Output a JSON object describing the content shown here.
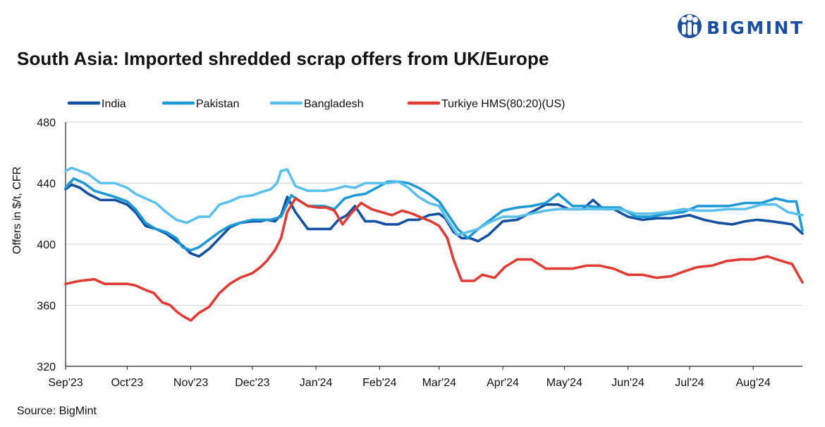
{
  "brand": {
    "name": "BIGMINT",
    "color": "#1d4fa0"
  },
  "source_text": "Source: BigMint",
  "chart_data": {
    "type": "line",
    "title": "South Asia: Imported shredded scrap offers from UK/Europe",
    "xlabel": "",
    "ylabel": "Offers in $/t, CFR",
    "ylim": [
      320,
      480
    ],
    "yticks": [
      320,
      360,
      400,
      440,
      480
    ],
    "x_tick_labels": [
      "Sep'23",
      "Oct'23",
      "Nov'23",
      "Dec'23",
      "Jan'24",
      "Feb'24",
      "Mar'24",
      "Apr'24",
      "May'24",
      "Jun'24",
      "Jul'24",
      "Aug'24"
    ],
    "x_start": "2023-09-01",
    "x_end": "2024-08-25",
    "grid": {
      "horizontal": true,
      "vertical": false
    },
    "legend_position": "top",
    "series": [
      {
        "name": "India",
        "color": "#1450a0",
        "x": [
          "2023-09-01",
          "2023-09-04",
          "2023-09-08",
          "2023-09-12",
          "2023-09-18",
          "2023-09-25",
          "2023-10-01",
          "2023-10-05",
          "2023-10-10",
          "2023-10-15",
          "2023-10-20",
          "2023-10-25",
          "2023-10-28",
          "2023-11-01",
          "2023-11-05",
          "2023-11-10",
          "2023-11-15",
          "2023-11-20",
          "2023-11-25",
          "2023-12-01",
          "2023-12-05",
          "2023-12-08",
          "2023-12-12",
          "2023-12-15",
          "2023-12-18",
          "2023-12-22",
          "2023-12-28",
          "2024-01-03",
          "2024-01-08",
          "2024-01-12",
          "2024-01-16",
          "2024-01-20",
          "2024-01-25",
          "2024-01-30",
          "2024-02-04",
          "2024-02-10",
          "2024-02-15",
          "2024-02-20",
          "2024-02-25",
          "2024-03-01",
          "2024-03-04",
          "2024-03-08",
          "2024-03-12",
          "2024-03-16",
          "2024-03-20",
          "2024-03-25",
          "2024-04-01",
          "2024-04-08",
          "2024-04-15",
          "2024-04-22",
          "2024-04-28",
          "2024-05-03",
          "2024-05-10",
          "2024-05-15",
          "2024-05-20",
          "2024-05-25",
          "2024-06-01",
          "2024-06-08",
          "2024-06-15",
          "2024-06-22",
          "2024-07-01",
          "2024-07-08",
          "2024-07-15",
          "2024-07-22",
          "2024-07-28",
          "2024-08-03",
          "2024-08-10",
          "2024-08-15",
          "2024-08-20",
          "2024-08-25"
        ],
        "y": [
          436,
          439,
          437,
          433,
          429,
          429,
          426,
          421,
          412,
          410,
          407,
          402,
          399,
          394,
          392,
          397,
          404,
          411,
          414,
          415,
          415,
          416,
          415,
          419,
          431,
          421,
          410,
          410,
          410,
          416,
          419,
          425,
          415,
          415,
          413,
          413,
          416,
          416,
          419,
          420,
          417,
          408,
          404,
          404,
          402,
          406,
          415,
          416,
          421,
          426,
          426,
          423,
          423,
          429,
          423,
          423,
          418,
          416,
          417,
          417,
          419,
          416,
          414,
          413,
          415,
          416,
          415,
          414,
          413,
          407
        ]
      },
      {
        "name": "Pakistan",
        "color": "#1d9ad6",
        "x": [
          "2023-09-01",
          "2023-09-05",
          "2023-09-10",
          "2023-09-15",
          "2023-09-20",
          "2023-09-25",
          "2023-10-01",
          "2023-10-05",
          "2023-10-10",
          "2023-10-15",
          "2023-10-20",
          "2023-10-25",
          "2023-10-28",
          "2023-11-01",
          "2023-11-05",
          "2023-11-10",
          "2023-11-15",
          "2023-11-20",
          "2023-11-25",
          "2023-12-01",
          "2023-12-05",
          "2023-12-10",
          "2023-12-15",
          "2023-12-20",
          "2023-12-28",
          "2024-01-05",
          "2024-01-10",
          "2024-01-15",
          "2024-01-20",
          "2024-01-25",
          "2024-02-01",
          "2024-02-05",
          "2024-02-10",
          "2024-02-15",
          "2024-02-20",
          "2024-02-25",
          "2024-03-01",
          "2024-03-05",
          "2024-03-10",
          "2024-03-15",
          "2024-03-20",
          "2024-03-25",
          "2024-04-01",
          "2024-04-08",
          "2024-04-15",
          "2024-04-22",
          "2024-04-28",
          "2024-05-05",
          "2024-05-12",
          "2024-05-20",
          "2024-05-28",
          "2024-06-05",
          "2024-06-12",
          "2024-06-20",
          "2024-06-28",
          "2024-07-05",
          "2024-07-12",
          "2024-07-20",
          "2024-07-28",
          "2024-08-05",
          "2024-08-12",
          "2024-08-18",
          "2024-08-22",
          "2024-08-25"
        ],
        "y": [
          437,
          443,
          440,
          435,
          433,
          431,
          428,
          423,
          414,
          410,
          408,
          404,
          398,
          396,
          398,
          403,
          408,
          412,
          414,
          416,
          416,
          416,
          418,
          432,
          425,
          425,
          423,
          430,
          432,
          433,
          438,
          441,
          441,
          440,
          437,
          433,
          428,
          420,
          410,
          404,
          410,
          415,
          422,
          424,
          425,
          427,
          433,
          425,
          425,
          424,
          424,
          418,
          418,
          420,
          421,
          425,
          425,
          425,
          427,
          427,
          430,
          428,
          428,
          409
        ]
      },
      {
        "name": "Bangladesh",
        "color": "#5bc0eb",
        "x": [
          "2023-09-01",
          "2023-09-04",
          "2023-09-08",
          "2023-09-12",
          "2023-09-18",
          "2023-09-25",
          "2023-10-01",
          "2023-10-05",
          "2023-10-10",
          "2023-10-15",
          "2023-10-20",
          "2023-10-25",
          "2023-10-30",
          "2023-11-05",
          "2023-11-10",
          "2023-11-15",
          "2023-11-20",
          "2023-11-25",
          "2023-12-01",
          "2023-12-05",
          "2023-12-10",
          "2023-12-13",
          "2023-12-15",
          "2023-12-18",
          "2023-12-22",
          "2023-12-28",
          "2024-01-05",
          "2024-01-10",
          "2024-01-15",
          "2024-01-20",
          "2024-01-25",
          "2024-02-01",
          "2024-02-05",
          "2024-02-10",
          "2024-02-15",
          "2024-02-20",
          "2024-02-25",
          "2024-03-01",
          "2024-03-05",
          "2024-03-10",
          "2024-03-15",
          "2024-03-20",
          "2024-03-25",
          "2024-04-01",
          "2024-04-08",
          "2024-04-15",
          "2024-04-22",
          "2024-04-28",
          "2024-05-05",
          "2024-05-12",
          "2024-05-20",
          "2024-05-28",
          "2024-06-05",
          "2024-06-12",
          "2024-06-20",
          "2024-06-28",
          "2024-07-05",
          "2024-07-12",
          "2024-07-20",
          "2024-07-28",
          "2024-08-05",
          "2024-08-12",
          "2024-08-18",
          "2024-08-25"
        ],
        "y": [
          448,
          450,
          448,
          446,
          440,
          440,
          437,
          433,
          430,
          427,
          421,
          416,
          414,
          418,
          418,
          426,
          428,
          431,
          432,
          434,
          436,
          440,
          448,
          449,
          438,
          435,
          435,
          436,
          438,
          437,
          440,
          440,
          440,
          441,
          437,
          431,
          427,
          425,
          416,
          406,
          408,
          410,
          414,
          418,
          418,
          420,
          422,
          423,
          423,
          423,
          423,
          423,
          420,
          420,
          421,
          423,
          422,
          422,
          423,
          423,
          426,
          426,
          421,
          419
        ]
      },
      {
        "name": "Turkiye HMS(80:20)(US)",
        "color": "#e03c36",
        "x": [
          "2023-09-01",
          "2023-09-08",
          "2023-09-15",
          "2023-09-20",
          "2023-09-25",
          "2023-10-01",
          "2023-10-05",
          "2023-10-10",
          "2023-10-14",
          "2023-10-18",
          "2023-10-22",
          "2023-10-25",
          "2023-10-28",
          "2023-11-01",
          "2023-11-05",
          "2023-11-10",
          "2023-11-15",
          "2023-11-20",
          "2023-11-25",
          "2023-12-01",
          "2023-12-05",
          "2023-12-08",
          "2023-12-12",
          "2023-12-15",
          "2023-12-18",
          "2023-12-22",
          "2023-12-28",
          "2024-01-02",
          "2024-01-06",
          "2024-01-10",
          "2024-01-14",
          "2024-01-18",
          "2024-01-23",
          "2024-01-28",
          "2024-02-02",
          "2024-02-07",
          "2024-02-12",
          "2024-02-17",
          "2024-02-22",
          "2024-02-26",
          "2024-03-01",
          "2024-03-05",
          "2024-03-08",
          "2024-03-12",
          "2024-03-18",
          "2024-03-22",
          "2024-03-28",
          "2024-04-02",
          "2024-04-08",
          "2024-04-15",
          "2024-04-22",
          "2024-04-28",
          "2024-05-05",
          "2024-05-12",
          "2024-05-18",
          "2024-05-25",
          "2024-06-01",
          "2024-06-08",
          "2024-06-15",
          "2024-06-22",
          "2024-06-28",
          "2024-07-05",
          "2024-07-12",
          "2024-07-19",
          "2024-07-26",
          "2024-08-01",
          "2024-08-08",
          "2024-08-15",
          "2024-08-20",
          "2024-08-25"
        ],
        "y": [
          374,
          376,
          377,
          374,
          374,
          374,
          373,
          370,
          368,
          362,
          360,
          356,
          353,
          350,
          355,
          359,
          368,
          374,
          378,
          381,
          385,
          389,
          396,
          404,
          421,
          430,
          425,
          424,
          424,
          422,
          413,
          420,
          427,
          423,
          421,
          419,
          422,
          420,
          417,
          415,
          412,
          404,
          390,
          376,
          376,
          380,
          378,
          385,
          390,
          390,
          384,
          384,
          384,
          386,
          386,
          384,
          380,
          380,
          378,
          379,
          382,
          385,
          386,
          389,
          390,
          390,
          392,
          389,
          387,
          375
        ]
      }
    ]
  }
}
